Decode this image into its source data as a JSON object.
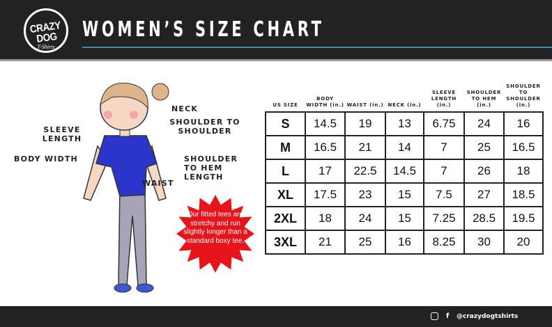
{
  "header": {
    "logo_text": "CRAZY DOG",
    "logo_sub": "T-Shirts",
    "title": "WOMEN’S SIZE CHART"
  },
  "colors": {
    "header_bg": "#222222",
    "accent_line": "#3a8fb0",
    "burst": "#e8141b",
    "shirt": "#2b35c9"
  },
  "diagram": {
    "labels": {
      "neck": "NECK",
      "shoulder_to_shoulder": "SHOULDER TO SHOULDER",
      "sleeve_length": "SLEEVE LENGTH",
      "body_width": "BODY WIDTH",
      "shoulder_to_hem": "SHOULDER TO HEM LENGTH",
      "waist": "WAIST"
    },
    "note": "Our fitted tees are stretchy and run slightly longer than a standard boxy tee."
  },
  "table": {
    "headers": [
      "US SIZE",
      "BODY WIDTH (in.)",
      "WAIST (in.)",
      "NECK (in.)",
      "SLEEVE LENGTH (in.)",
      "SHOULDER TO HEM (in.)",
      "SHOULDER TO SHOULDER (in.)"
    ],
    "rows": [
      [
        "S",
        "14.5",
        "19",
        "13",
        "6.75",
        "24",
        "16"
      ],
      [
        "M",
        "16.5",
        "21",
        "14",
        "7",
        "25",
        "16.5"
      ],
      [
        "L",
        "17",
        "22.5",
        "14.5",
        "7",
        "26",
        "18"
      ],
      [
        "XL",
        "17.5",
        "23",
        "15",
        "7.5",
        "27",
        "18.5"
      ],
      [
        "2XL",
        "18",
        "24",
        "15",
        "7.25",
        "28.5",
        "19.5"
      ],
      [
        "3XL",
        "21",
        "25",
        "16",
        "8.25",
        "30",
        "20"
      ]
    ]
  },
  "footer": {
    "handle": "@crazydogtshirts",
    "icons": [
      "instagram-icon",
      "facebook-icon"
    ]
  }
}
